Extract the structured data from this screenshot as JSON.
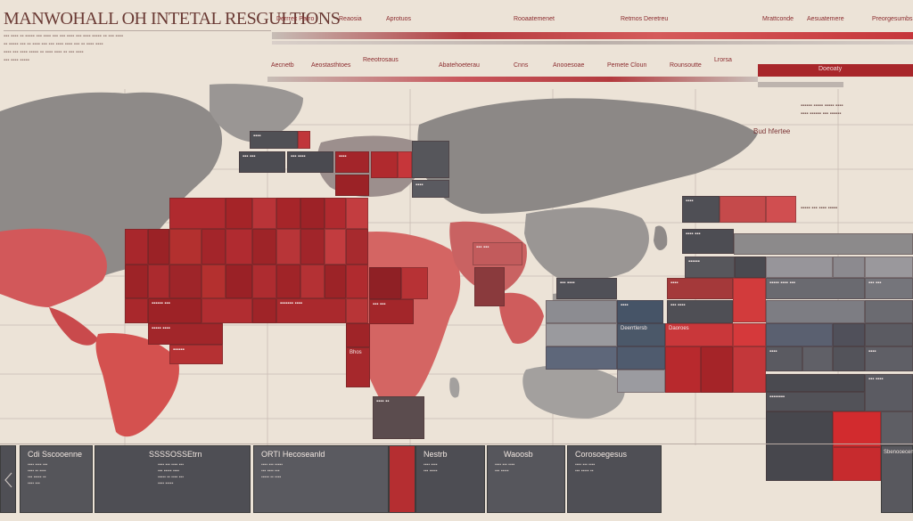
{
  "header": {
    "title": "MANWOHALL OH INTETAL RESGULTIONS"
  },
  "top_labels": [
    "Derrrex Parro",
    "Reaosia",
    "Aprotuos",
    "Rooaatemenet",
    "Retmos Deretreu",
    "Mrattconde",
    "Aesuatemere",
    "Preorgesumbs"
  ],
  "mid_labels": [
    "Aecnetb",
    "Aeostasthtoes",
    "Reeotrosaus",
    "Abatehoeterau",
    "Cnns",
    "Anooesoae",
    "Pemete Cloun",
    "Rounsoutte",
    "Lrorsa",
    "Doeoaty"
  ],
  "right_header": "Bud hfertee",
  "map_labels": {
    "cell_a": "Pemeteus",
    "cell_b": "Daouis",
    "cell_c": "Bhos",
    "cell_d": "Deerrtlersb",
    "cell_e": "Daoroes"
  },
  "panels": [
    {
      "title": "Cdi Sscooenne"
    },
    {
      "title": "SSSSOSSEtrn"
    },
    {
      "title": "ORTI Hecoseanld"
    },
    {
      "title": "Nestrb"
    },
    {
      "title": "Waoosb"
    },
    {
      "title": "Corosoegesus"
    },
    {
      "title": "Sbenooecerte"
    }
  ]
}
